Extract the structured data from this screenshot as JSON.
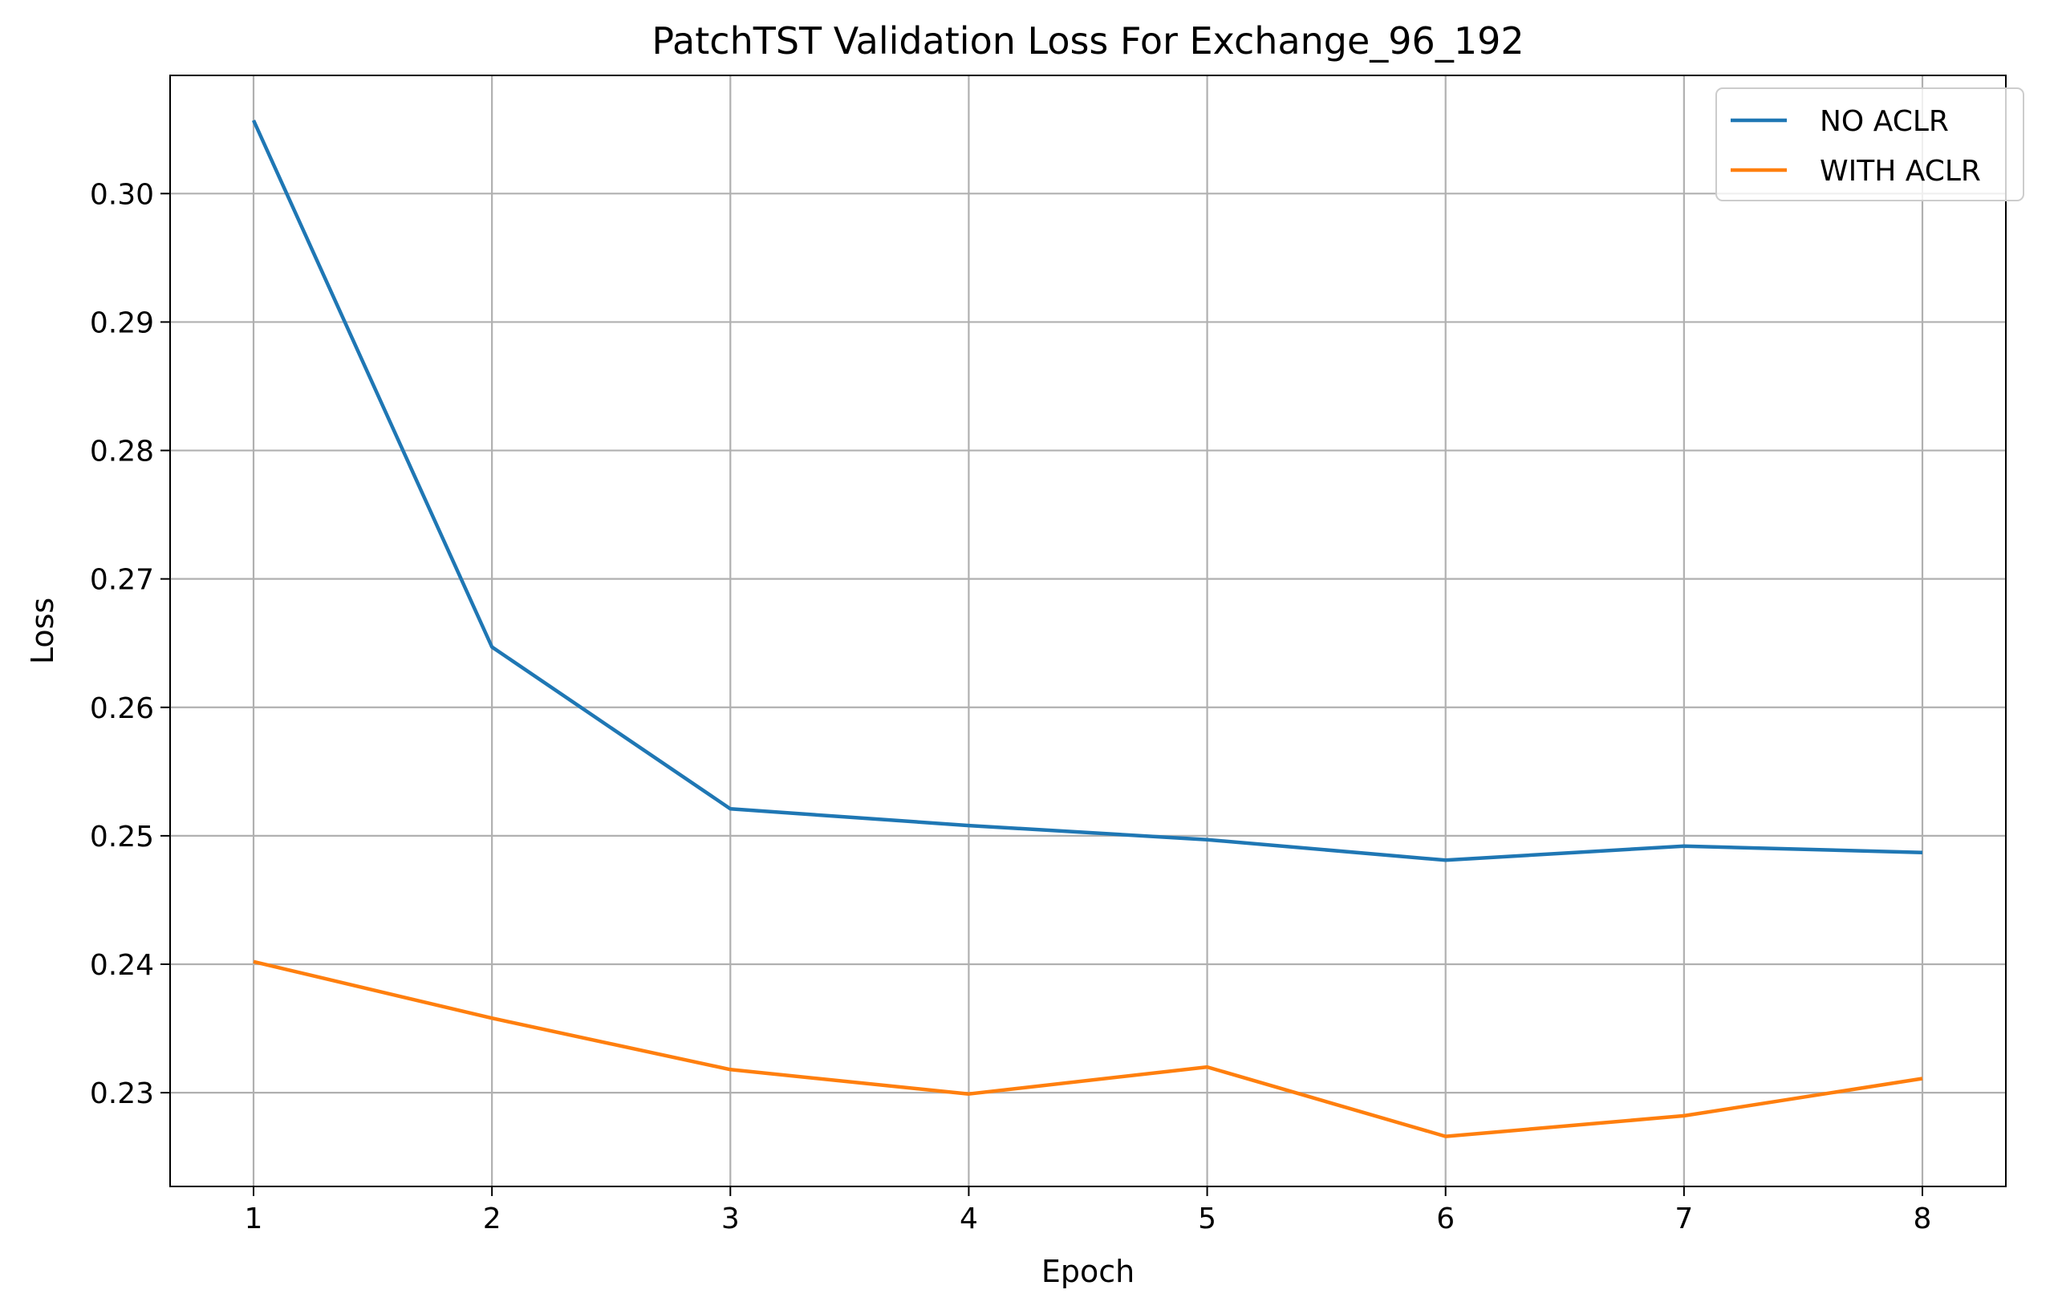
{
  "chart_data": {
    "type": "line",
    "title": "PatchTST Validation Loss For Exchange_96_192",
    "xlabel": "Epoch",
    "ylabel": "Loss",
    "x": [
      1,
      2,
      3,
      4,
      5,
      6,
      7,
      8
    ],
    "xticks": [
      "1",
      "2",
      "3",
      "4",
      "5",
      "6",
      "7",
      "8"
    ],
    "yticks": [
      "0.23",
      "0.24",
      "0.25",
      "0.26",
      "0.27",
      "0.28",
      "0.29",
      "0.30"
    ],
    "xlim": [
      0.65,
      8.35
    ],
    "ylim": [
      0.2227,
      0.3092
    ],
    "grid": true,
    "legend_position": "top-right",
    "series": [
      {
        "name": "NO ACLR",
        "color": "#1f77b4",
        "values": [
          0.3057,
          0.2647,
          0.2521,
          0.2508,
          0.2497,
          0.2481,
          0.2492,
          0.2487
        ]
      },
      {
        "name": "WITH ACLR",
        "color": "#ff7f0e",
        "values": [
          0.2402,
          0.2358,
          0.2318,
          0.2299,
          0.232,
          0.2266,
          0.2282,
          0.2311
        ]
      }
    ]
  }
}
